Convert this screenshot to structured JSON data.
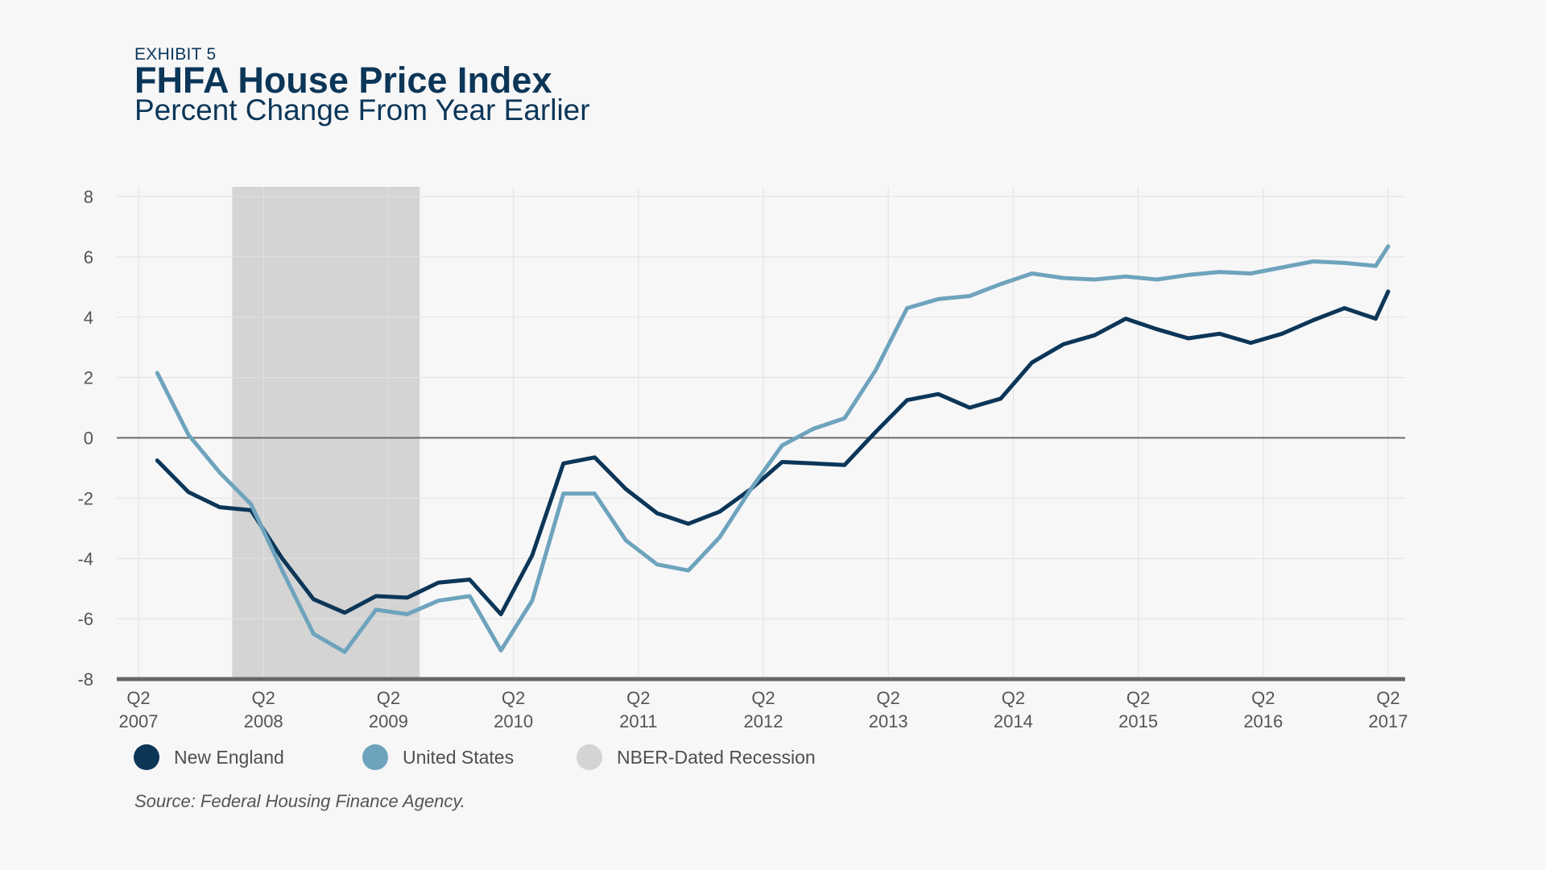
{
  "header": {
    "exhibit": "EXHIBIT 5",
    "title": "FHFA House Price Index",
    "subtitle": "Percent Change From Year Earlier"
  },
  "legend": [
    {
      "label": "New England",
      "color": "#0c3658"
    },
    {
      "label": "United States",
      "color": "#6ea3bd"
    },
    {
      "label": "NBER-Dated Recession",
      "color": "#d4d4d4"
    }
  ],
  "source": "Source: Federal Housing Finance Agency.",
  "chart_data": {
    "type": "line",
    "title": "FHFA House Price Index",
    "subtitle": "Percent Change From Year Earlier",
    "xlabel": "",
    "ylabel": "",
    "ylim": [
      -8,
      8
    ],
    "yticks": [
      8,
      6,
      4,
      2,
      0,
      -2,
      -4,
      -6,
      -8
    ],
    "xlim": [
      2007.25,
      2017.25
    ],
    "xticks": [
      {
        "value": 2007.25,
        "line1": "Q2",
        "line2": "2007"
      },
      {
        "value": 2008.25,
        "line1": "Q2",
        "line2": "2008"
      },
      {
        "value": 2009.25,
        "line1": "Q2",
        "line2": "2009"
      },
      {
        "value": 2010.25,
        "line1": "Q2",
        "line2": "2010"
      },
      {
        "value": 2011.25,
        "line1": "Q2",
        "line2": "2011"
      },
      {
        "value": 2012.25,
        "line1": "Q2",
        "line2": "2012"
      },
      {
        "value": 2013.25,
        "line1": "Q2",
        "line2": "2013"
      },
      {
        "value": 2014.25,
        "line1": "Q2",
        "line2": "2014"
      },
      {
        "value": 2015.25,
        "line1": "Q2",
        "line2": "2015"
      },
      {
        "value": 2016.25,
        "line1": "Q2",
        "line2": "2016"
      },
      {
        "value": 2017.25,
        "line1": "Q2",
        "line2": "2017"
      }
    ],
    "recession": {
      "label": "NBER-Dated Recession",
      "start": 2008.0,
      "end": 2009.5
    },
    "x": [
      2007.4,
      2007.65,
      2007.9,
      2008.15,
      2008.4,
      2008.65,
      2008.9,
      2009.15,
      2009.4,
      2009.65,
      2009.9,
      2010.15,
      2010.4,
      2010.65,
      2010.9,
      2011.15,
      2011.4,
      2011.65,
      2011.9,
      2012.15,
      2012.4,
      2012.65,
      2012.9,
      2013.15,
      2013.4,
      2013.65,
      2013.9,
      2014.15,
      2014.4,
      2014.65,
      2014.9,
      2015.15,
      2015.4,
      2015.65,
      2015.9,
      2016.15,
      2016.4,
      2016.65,
      2016.9,
      2017.15,
      2017.25
    ],
    "series": [
      {
        "name": "New England",
        "color": "#0c3658",
        "values": [
          -0.75,
          -1.8,
          -2.3,
          -2.4,
          -4.0,
          -5.35,
          -5.8,
          -5.25,
          -5.3,
          -4.8,
          -4.7,
          -5.85,
          -3.9,
          -0.85,
          -0.65,
          -1.7,
          -2.5,
          -2.85,
          -2.45,
          -1.7,
          -0.8,
          -0.85,
          -0.9,
          0.2,
          1.25,
          1.45,
          1.0,
          1.3,
          2.5,
          3.1,
          3.4,
          3.95,
          3.6,
          3.3,
          3.45,
          3.15,
          3.45,
          3.9,
          4.3,
          3.95,
          4.85
        ]
      },
      {
        "name": "United States",
        "color": "#6ea3bd",
        "values": [
          2.15,
          0.1,
          -1.15,
          -2.2,
          -4.4,
          -6.5,
          -7.1,
          -5.7,
          -5.85,
          -5.4,
          -5.25,
          -7.05,
          -5.4,
          -1.85,
          -1.85,
          -3.4,
          -4.2,
          -4.4,
          -3.3,
          -1.7,
          -0.25,
          0.3,
          0.65,
          2.25,
          4.3,
          4.6,
          4.7,
          5.1,
          5.45,
          5.3,
          5.25,
          5.35,
          5.25,
          5.4,
          5.5,
          5.45,
          5.65,
          5.85,
          5.8,
          5.7,
          6.35
        ]
      }
    ],
    "grid": true,
    "legend_position": "bottom-left"
  }
}
